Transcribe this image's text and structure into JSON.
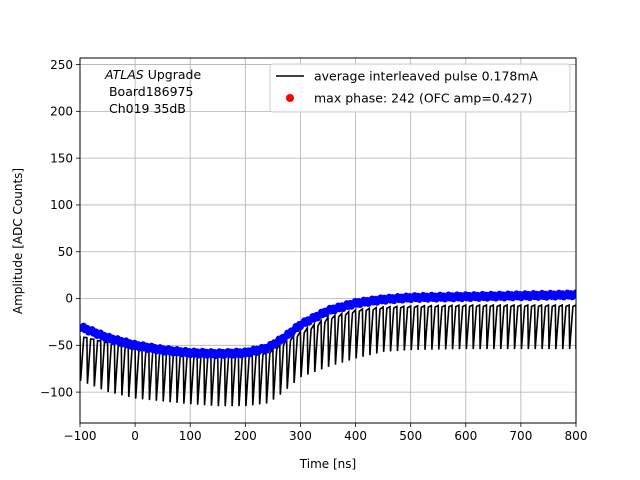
{
  "chart_data": {
    "type": "line",
    "title": "",
    "xlabel": "Time [ns]",
    "ylabel": "Amplitude [ADC Counts]",
    "xlim": [
      -100,
      800
    ],
    "ylim": [
      -133,
      257
    ],
    "grid": true,
    "x_ticks": [
      -100,
      0,
      100,
      200,
      300,
      400,
      500,
      600,
      700,
      800
    ],
    "x_tick_labels": [
      "−100",
      "0",
      "100",
      "200",
      "300",
      "400",
      "500",
      "600",
      "700",
      "800"
    ],
    "y_ticks": [
      -100,
      -50,
      0,
      50,
      100,
      150,
      200,
      250
    ],
    "y_tick_labels": [
      "−100",
      "−50",
      "0",
      "50",
      "100",
      "150",
      "200",
      "250"
    ],
    "annotation": {
      "lines": [
        "ATLAS Upgrade",
        " Board186975",
        " Ch019 35dB"
      ],
      "italic_word": "ATLAS"
    },
    "legend": {
      "placement": "upper-right",
      "entries": [
        {
          "label": "average interleaved pulse 0.178mA",
          "marker": "line",
          "color": "#000000"
        },
        {
          "label": "max phase: 242 (OFC amp=0.427)",
          "marker": "dot",
          "color": "#ff0000"
        }
      ]
    },
    "pulse_period_ns": 12.5,
    "series": [
      {
        "role": "pulse_envelope_upper",
        "color": "#000000",
        "points": [
          [
            -100,
            -40
          ],
          [
            -50,
            -47
          ],
          [
            0,
            -54
          ],
          [
            50,
            -58
          ],
          [
            100,
            -60
          ],
          [
            150,
            -62
          ],
          [
            200,
            -61
          ],
          [
            240,
            -57
          ],
          [
            270,
            -45
          ],
          [
            300,
            -35
          ],
          [
            350,
            -20
          ],
          [
            400,
            -12
          ],
          [
            450,
            -9
          ],
          [
            500,
            -8
          ],
          [
            600,
            -7
          ],
          [
            700,
            -7
          ],
          [
            800,
            -7
          ]
        ]
      },
      {
        "role": "pulse_envelope_lower",
        "color": "#000000",
        "points": [
          [
            -100,
            -88
          ],
          [
            -50,
            -100
          ],
          [
            0,
            -107
          ],
          [
            50,
            -110
          ],
          [
            100,
            -113
          ],
          [
            150,
            -115
          ],
          [
            200,
            -115
          ],
          [
            240,
            -112
          ],
          [
            260,
            -104
          ],
          [
            300,
            -84
          ],
          [
            350,
            -73
          ],
          [
            400,
            -64
          ],
          [
            450,
            -57
          ],
          [
            500,
            -55
          ],
          [
            600,
            -54
          ],
          [
            700,
            -54
          ],
          [
            800,
            -54
          ]
        ]
      },
      {
        "role": "sample_points",
        "color": "#0000ff",
        "points": [
          [
            -100,
            -30
          ],
          [
            -50,
            -42
          ],
          [
            0,
            -50
          ],
          [
            50,
            -55
          ],
          [
            100,
            -58
          ],
          [
            150,
            -59
          ],
          [
            200,
            -58
          ],
          [
            240,
            -53
          ],
          [
            270,
            -42
          ],
          [
            300,
            -28
          ],
          [
            350,
            -13
          ],
          [
            400,
            -5
          ],
          [
            450,
            -1
          ],
          [
            500,
            1
          ],
          [
            600,
            2
          ],
          [
            700,
            3
          ],
          [
            800,
            4
          ]
        ]
      }
    ]
  }
}
